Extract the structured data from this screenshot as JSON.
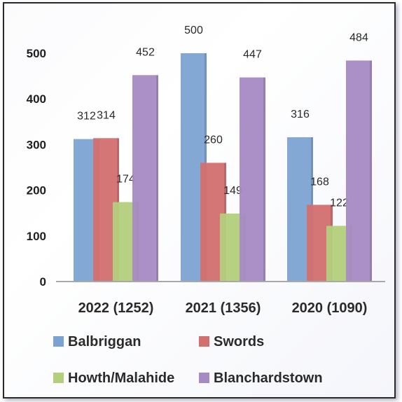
{
  "chart_data": {
    "type": "bar",
    "categories": [
      "2022 (1252)",
      "2021 (1356)",
      "2020 (1090)"
    ],
    "series": [
      {
        "name": "Balbriggan",
        "values": [
          312,
          500,
          316
        ],
        "color": "#7ba3d1"
      },
      {
        "name": "Swords",
        "values": [
          314,
          260,
          168
        ],
        "color": "#d36f6f"
      },
      {
        "name": "Howth/Malahide",
        "values": [
          174,
          149,
          122
        ],
        "color": "#b3cf7c"
      },
      {
        "name": "Blanchardstown",
        "values": [
          452,
          447,
          484
        ],
        "color": "#a68ac4"
      }
    ],
    "yticks": [
      "0",
      "100",
      "200",
      "300",
      "400",
      "500"
    ],
    "ylim": [
      0,
      500
    ],
    "grid": false,
    "legend_position": "bottom"
  }
}
